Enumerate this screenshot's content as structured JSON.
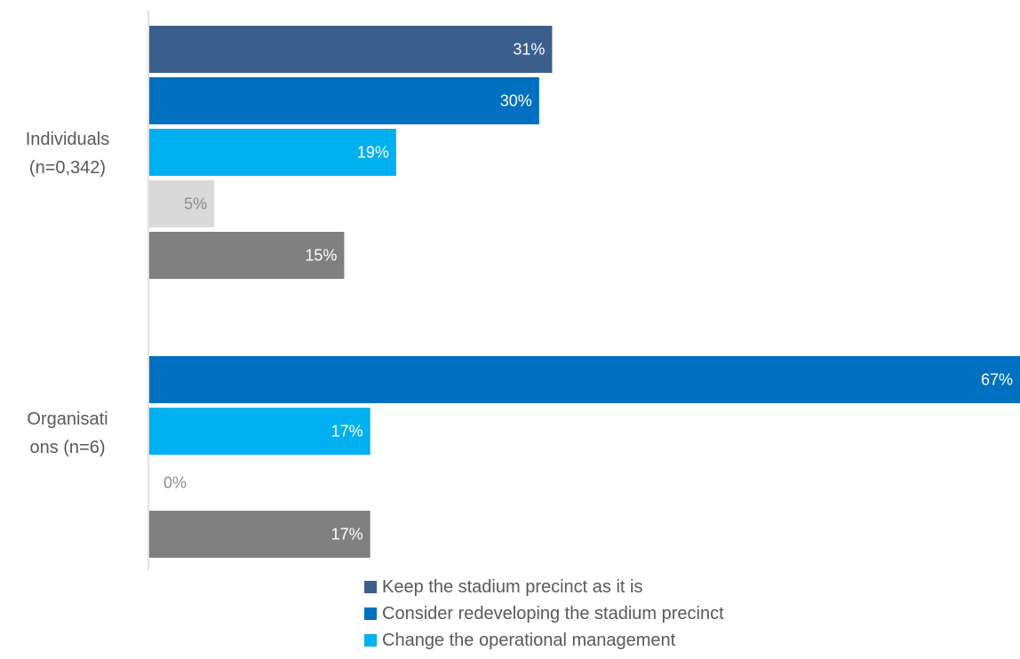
{
  "chart_data": {
    "type": "bar",
    "orientation": "horizontal",
    "categories": [
      "Individuals (n=0,342)",
      "Organisations (n=6)"
    ],
    "category_lines": [
      [
        "Individuals",
        "(n=0,342)"
      ],
      [
        "Organisati",
        "ons (n=6)"
      ]
    ],
    "series": [
      {
        "name": "Keep the stadium precinct as it is",
        "color": "#3b5e8c",
        "values": [
          31,
          null
        ],
        "labels": [
          "31%",
          ""
        ]
      },
      {
        "name": "Consider redeveloping the stadium precinct",
        "color": "#0070c0",
        "values": [
          30,
          67
        ],
        "labels": [
          "30%",
          "67%"
        ]
      },
      {
        "name": "Change the operational management",
        "color": "#00b0f0",
        "values": [
          19,
          17
        ],
        "labels": [
          "19%",
          "17%"
        ]
      },
      {
        "name": "",
        "color": "#d9d9d9",
        "values": [
          5,
          0
        ],
        "labels": [
          "5%",
          "0%"
        ]
      },
      {
        "name": "",
        "color": "#808080",
        "values": [
          15,
          17
        ],
        "labels": [
          "15%",
          "17%"
        ]
      }
    ],
    "xlim": [
      0,
      67
    ],
    "grid": false,
    "legend_position": "bottom"
  }
}
